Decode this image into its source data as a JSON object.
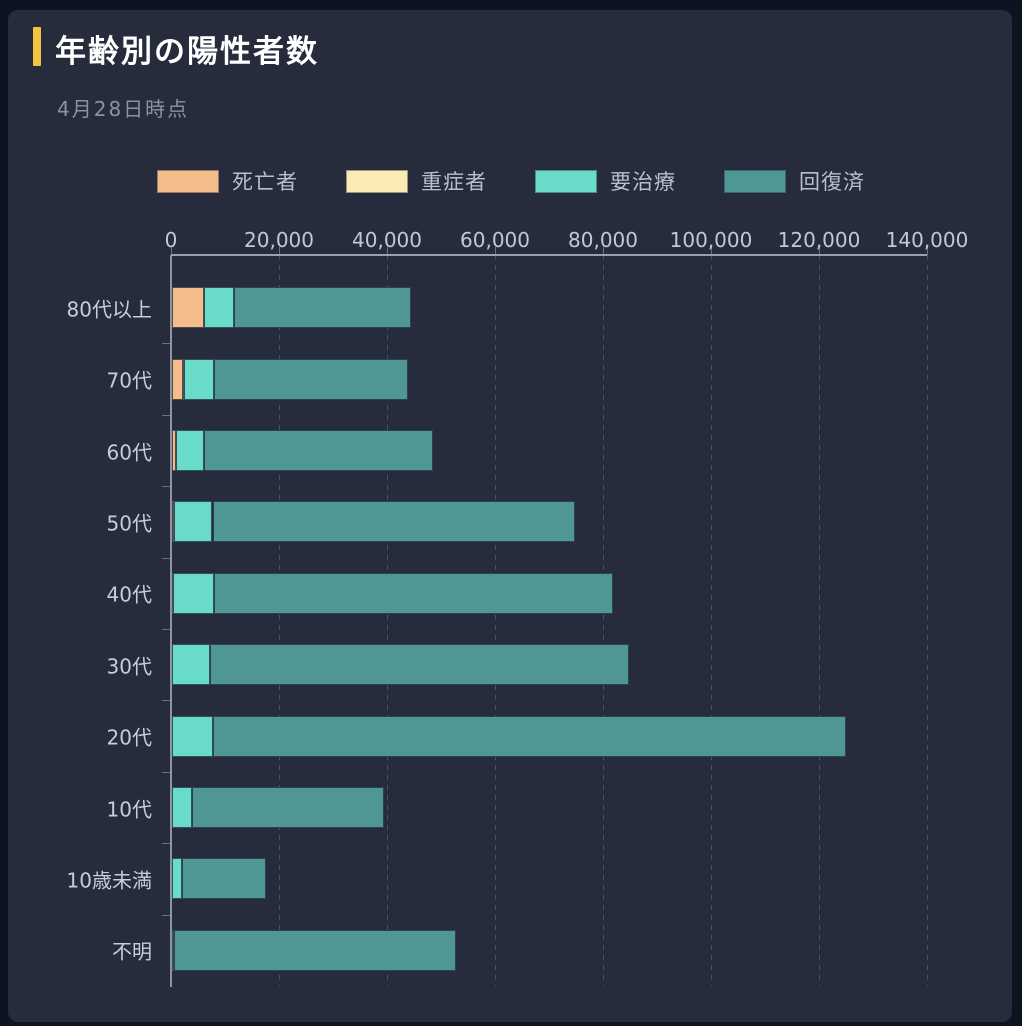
{
  "colors": {
    "outer_background": "#0d1320",
    "card_background": "#262c3c",
    "title_accent": "#f0c440",
    "title_text": "#ffffff",
    "subtitle_text": "#8b92a4",
    "axis_text": "#c3c8d2",
    "category_text": "#c9cdd7",
    "legend_text": "#b9bfcb",
    "gridline": "#4b5264",
    "axis_line": "#9aa0b0"
  },
  "chart_data": {
    "type": "bar",
    "orientation": "horizontal",
    "stacked": true,
    "title": "年齢別の陽性者数",
    "subtitle": "4月28日時点",
    "categories": [
      "80代以上",
      "70代",
      "60代",
      "50代",
      "40代",
      "30代",
      "20代",
      "10代",
      "10歳未満",
      "不明"
    ],
    "series": [
      {
        "name": "死亡者",
        "key": "deaths",
        "color": "#f5bc8c",
        "values": [
          5900,
          2100,
          650,
          200,
          70,
          30,
          10,
          0,
          0,
          0
        ]
      },
      {
        "name": "重症者",
        "key": "severe",
        "color": "#fbe9b6",
        "values": [
          100,
          150,
          150,
          100,
          50,
          20,
          10,
          5,
          5,
          0
        ]
      },
      {
        "name": "要治療",
        "key": "treatment",
        "color": "#68dcc9",
        "values": [
          5500,
          5500,
          5200,
          7200,
          7600,
          6900,
          7600,
          3700,
          1850,
          400
        ]
      },
      {
        "name": "回復済",
        "key": "recovered",
        "color": "#4f9794",
        "values": [
          32800,
          35900,
          42400,
          67100,
          74000,
          77600,
          117200,
          35500,
          15550,
          52200
        ]
      }
    ],
    "xlim": [
      0,
      140000
    ],
    "x_ticks": [
      0,
      20000,
      40000,
      60000,
      80000,
      100000,
      120000,
      140000
    ],
    "x_tick_labels": [
      "0",
      "20,000",
      "40,000",
      "60,000",
      "80,000",
      "100,000",
      "120,000",
      "140,000"
    ],
    "grid": "vertical-dashed",
    "legend_position": "top",
    "axis_position": "top"
  }
}
